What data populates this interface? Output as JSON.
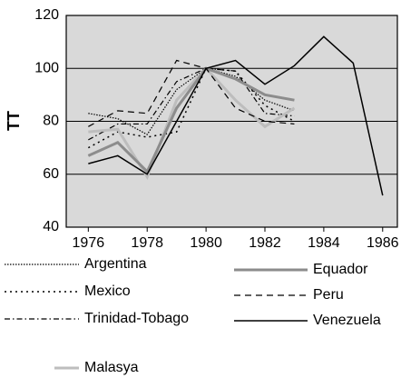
{
  "chart_data": {
    "type": "line",
    "ylabel": "TT",
    "x": [
      1976,
      1977,
      1978,
      1979,
      1980,
      1981,
      1982,
      1983,
      1984,
      1985,
      1986
    ],
    "series": [
      {
        "name": "Argentina",
        "color": "#000000",
        "style": "dense-dotted",
        "values": [
          83,
          81,
          75,
          92,
          100,
          97,
          88,
          84,
          null,
          null,
          null
        ]
      },
      {
        "name": "Mexico",
        "color": "#000000",
        "style": "dotted",
        "values": [
          70,
          76,
          74,
          76,
          100,
          99,
          86,
          80,
          null,
          null,
          null
        ]
      },
      {
        "name": "Trinidad-Tobago",
        "color": "#000000",
        "style": "dash-dot",
        "values": [
          73,
          79,
          79,
          95,
          100,
          99,
          83,
          82,
          null,
          null,
          null
        ]
      },
      {
        "name": "Malasya",
        "color": "#bdbdbd",
        "style": "thick",
        "values": [
          76,
          77,
          59,
          88,
          100,
          88,
          78,
          85,
          null,
          null,
          null
        ]
      },
      {
        "name": "Equador",
        "color": "#8c8c8c",
        "style": "thick",
        "values": [
          67,
          72,
          61,
          85,
          100,
          96,
          90,
          88,
          null,
          null,
          null
        ]
      },
      {
        "name": "Peru",
        "color": "#000000",
        "style": "dashed",
        "values": [
          78,
          84,
          83,
          103,
          100,
          85,
          80,
          79,
          null,
          null,
          null
        ]
      },
      {
        "name": "Venezuela",
        "color": "#000000",
        "style": "solid",
        "values": [
          64,
          67,
          60,
          80,
          100,
          103,
          94,
          101,
          112,
          102,
          52
        ]
      }
    ],
    "xlim": [
      1975.25,
      1986.5
    ],
    "xticks": [
      1976,
      1978,
      1980,
      1982,
      1984,
      1986
    ],
    "ylim": [
      40,
      120
    ],
    "yticks": [
      40,
      60,
      80,
      100,
      120
    ],
    "grid": true,
    "background": "#d9d9d9"
  }
}
